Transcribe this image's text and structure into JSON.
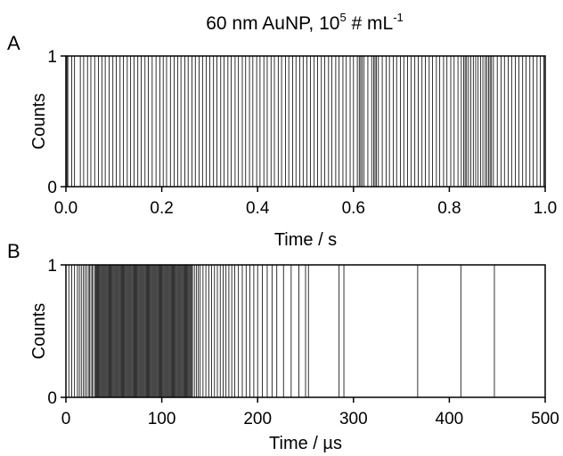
{
  "figure": {
    "title_main": "60 nm AuNP, 10",
    "title_exp1": "5",
    "title_mid": " # mL",
    "title_exp2": "-1"
  },
  "chart_data": [
    {
      "type": "event-raster",
      "panel_label": "A",
      "xlabel": "Time / s",
      "ylabel": "Counts",
      "xlim": [
        0.0,
        1.0
      ],
      "ylim": [
        0,
        1
      ],
      "x_ticks": [
        "0.0",
        "0.2",
        "0.4",
        "0.6",
        "0.8",
        "1.0"
      ],
      "y_ticks": [
        "0",
        "1"
      ],
      "grid": false,
      "line_color": "#000000",
      "events_x": [
        0.002,
        0.004,
        0.012,
        0.018,
        0.03,
        0.037,
        0.045,
        0.052,
        0.06,
        0.068,
        0.075,
        0.082,
        0.09,
        0.098,
        0.105,
        0.113,
        0.12,
        0.128,
        0.135,
        0.142,
        0.15,
        0.157,
        0.165,
        0.172,
        0.18,
        0.188,
        0.196,
        0.203,
        0.21,
        0.218,
        0.226,
        0.233,
        0.24,
        0.248,
        0.255,
        0.263,
        0.27,
        0.278,
        0.285,
        0.293,
        0.3,
        0.308,
        0.315,
        0.323,
        0.33,
        0.338,
        0.345,
        0.353,
        0.36,
        0.368,
        0.375,
        0.383,
        0.39,
        0.398,
        0.405,
        0.413,
        0.42,
        0.428,
        0.435,
        0.443,
        0.45,
        0.458,
        0.465,
        0.473,
        0.48,
        0.488,
        0.495,
        0.503,
        0.51,
        0.518,
        0.525,
        0.533,
        0.54,
        0.548,
        0.555,
        0.563,
        0.57,
        0.578,
        0.585,
        0.593,
        0.6,
        0.608,
        0.612,
        0.615,
        0.618,
        0.622,
        0.63,
        0.638,
        0.642,
        0.645,
        0.648,
        0.652,
        0.66,
        0.668,
        0.675,
        0.683,
        0.69,
        0.698,
        0.705,
        0.713,
        0.72,
        0.728,
        0.735,
        0.743,
        0.75,
        0.758,
        0.765,
        0.773,
        0.78,
        0.788,
        0.795,
        0.803,
        0.81,
        0.818,
        0.825,
        0.83,
        0.833,
        0.836,
        0.84,
        0.845,
        0.85,
        0.855,
        0.86,
        0.865,
        0.87,
        0.875,
        0.878,
        0.882,
        0.885,
        0.888,
        0.892,
        0.9,
        0.908,
        0.915,
        0.923,
        0.93,
        0.938,
        0.945,
        0.953,
        0.96,
        0.968,
        0.975,
        0.983,
        0.99,
        0.997
      ]
    },
    {
      "type": "event-raster",
      "panel_label": "B",
      "xlabel": "Time / µs",
      "ylabel": "Counts",
      "xlim": [
        0,
        500
      ],
      "ylim": [
        0,
        1
      ],
      "x_ticks": [
        "0",
        "100",
        "200",
        "300",
        "400",
        "500"
      ],
      "y_ticks": [
        "0",
        "1"
      ],
      "grid": false,
      "line_color": "#000000",
      "events_x": [
        3,
        6,
        9,
        12,
        14,
        16,
        18,
        20,
        22,
        24,
        25,
        27,
        28,
        30,
        31,
        32,
        33,
        34,
        35,
        36,
        37,
        38,
        39,
        40,
        41,
        42,
        43,
        44,
        45,
        46,
        47,
        48,
        49,
        50,
        51,
        52,
        53,
        54,
        55,
        56,
        57,
        58,
        59,
        60,
        61,
        62,
        63,
        64,
        65,
        66,
        67,
        68,
        69,
        70,
        71,
        72,
        73,
        74,
        75,
        76,
        77,
        78,
        79,
        80,
        81,
        82,
        83,
        84,
        85,
        86,
        87,
        88,
        89,
        90,
        91,
        92,
        93,
        94,
        95,
        96,
        97,
        98,
        99,
        100,
        101,
        102,
        103,
        104,
        105,
        106,
        107,
        108,
        109,
        110,
        111,
        112,
        113,
        114,
        115,
        116,
        117,
        118,
        119,
        120,
        121,
        122,
        123,
        124,
        125,
        126,
        127,
        128,
        129,
        130,
        131,
        132,
        134,
        136,
        138,
        140,
        143,
        146,
        149,
        152,
        155,
        158,
        161,
        164,
        167,
        170,
        173,
        176,
        180,
        184,
        188,
        192,
        196,
        200,
        205,
        210,
        215,
        220,
        227,
        235,
        243,
        250,
        253,
        285,
        290,
        367,
        412,
        447
      ]
    }
  ]
}
